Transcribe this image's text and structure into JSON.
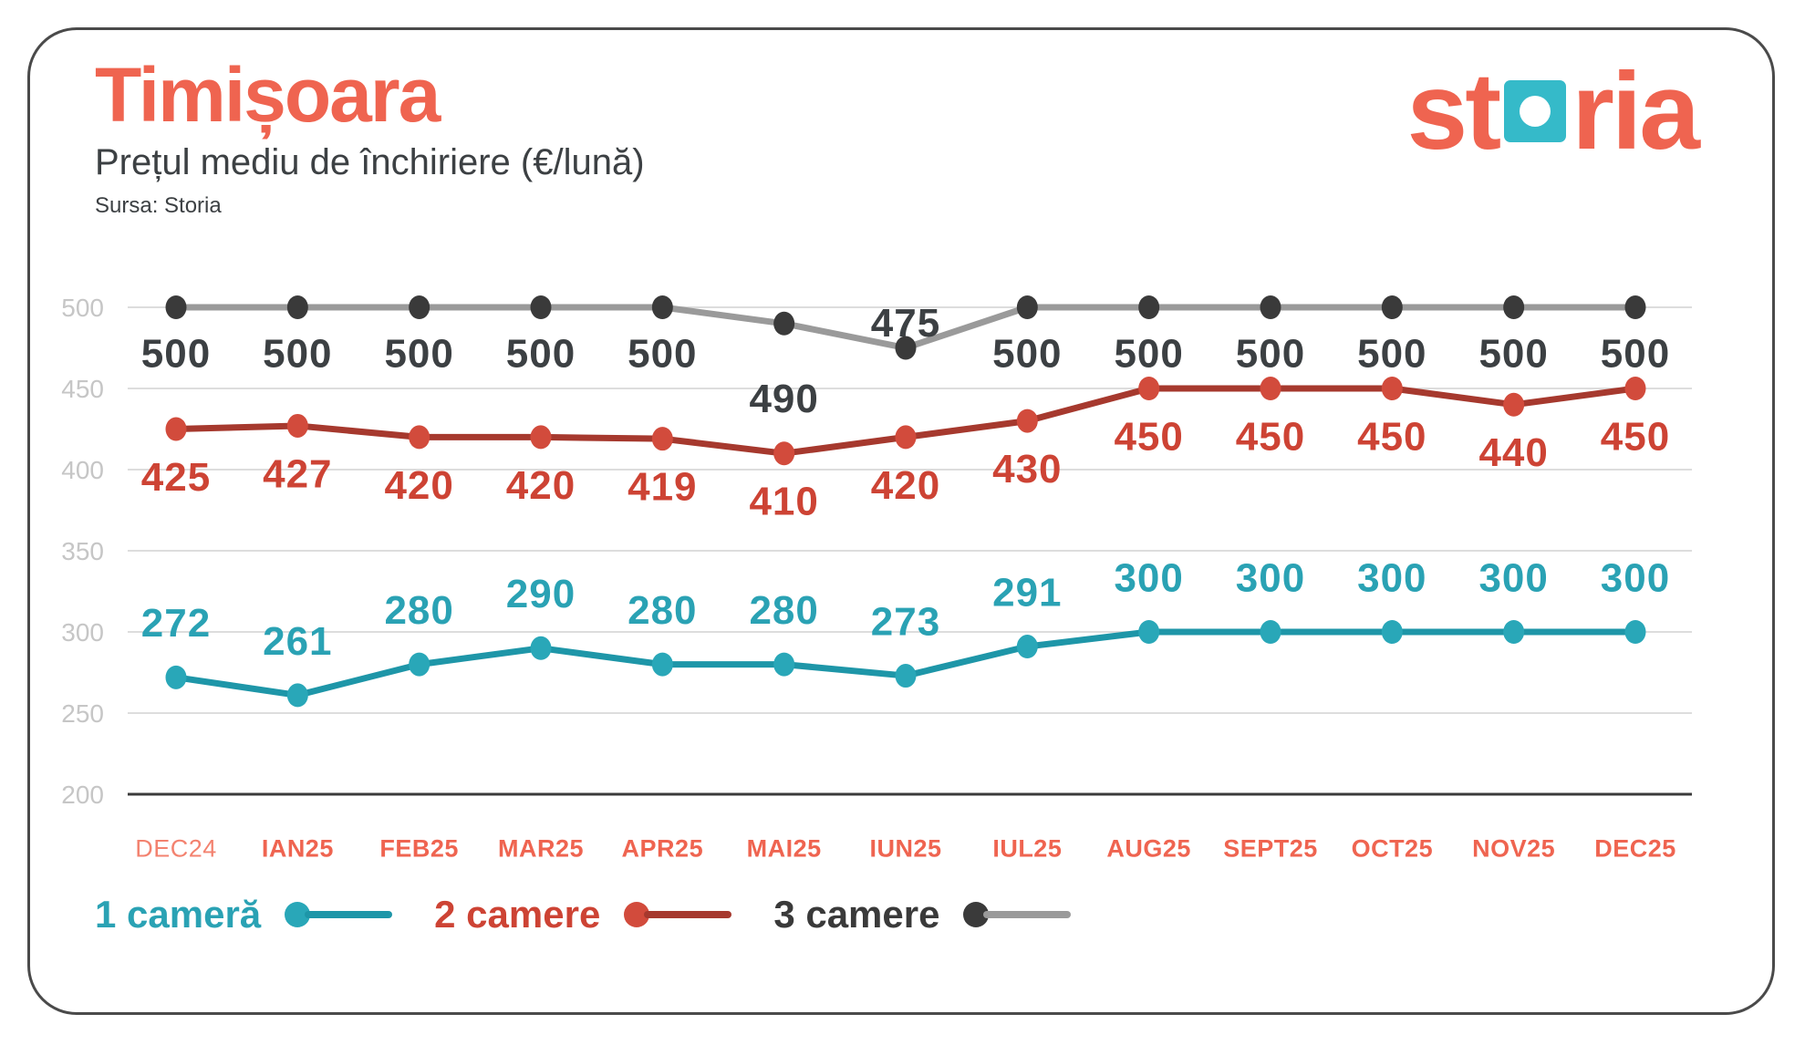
{
  "header": {
    "title": "Timișoara",
    "subtitle": "Prețul mediu de închiriere (€/lună)",
    "source": "Sursa: Storia"
  },
  "logo": {
    "part1": "st",
    "part2": "ria"
  },
  "colors": {
    "coral": "#EF6450",
    "coral_light": "#F3826F",
    "text_dark": "#3C4043",
    "grid": "#DDDDDD",
    "axis": "#3A3A3A",
    "y_tick": "#C6C6C6",
    "logo_teal": "#35BAC9",
    "card_border": "#4A4A4A"
  },
  "chart_data": {
    "type": "line",
    "title": "Prețul mediu de închiriere (€/lună)",
    "categories": [
      "DEC24",
      "IAN25",
      "FEB25",
      "MAR25",
      "APR25",
      "MAI25",
      "IUN25",
      "IUL25",
      "AUG25",
      "SEPT25",
      "OCT25",
      "NOV25",
      "DEC25"
    ],
    "y_ticks": [
      500,
      450,
      400,
      350,
      300,
      250,
      200
    ],
    "ylim": [
      200,
      500
    ],
    "grid": true,
    "legend_position": "bottom-left",
    "series": [
      {
        "name": "3 camere",
        "values": [
          500,
          500,
          500,
          500,
          500,
          490,
          475,
          500,
          500,
          500,
          500,
          500,
          500
        ],
        "line_color": "#9A9A9A",
        "dot_color": "#3A3A3A",
        "label_color": "#3C4043",
        "label_offset": 50,
        "label_offset_overrides": {
          "5": 82,
          "6": -28
        }
      },
      {
        "name": "2 camere",
        "values": [
          425,
          427,
          420,
          420,
          419,
          410,
          420,
          430,
          450,
          450,
          450,
          440,
          450
        ],
        "line_color": "#A6392E",
        "dot_color": "#D24B3C",
        "label_color": "#CD4334",
        "label_offset": 52,
        "label_offset_overrides": {}
      },
      {
        "name": "1 cameră",
        "values": [
          272,
          261,
          280,
          290,
          280,
          280,
          273,
          291,
          300,
          300,
          300,
          300,
          300
        ],
        "line_color": "#1E96A8",
        "dot_color": "#29A7B8",
        "label_color": "#2AA2B4",
        "label_offset": -60,
        "label_offset_overrides": {}
      }
    ],
    "legend": [
      {
        "label": "1 cameră",
        "text_color": "#2AA2B4",
        "dot_color": "#29A7B8",
        "line_color": "#1E96A8"
      },
      {
        "label": "2 camere",
        "text_color": "#CD4334",
        "dot_color": "#D24B3C",
        "line_color": "#A6392E"
      },
      {
        "label": "3 camere",
        "text_color": "#3A3A3A",
        "dot_color": "#3A3A3A",
        "line_color": "#9A9A9A"
      }
    ]
  }
}
